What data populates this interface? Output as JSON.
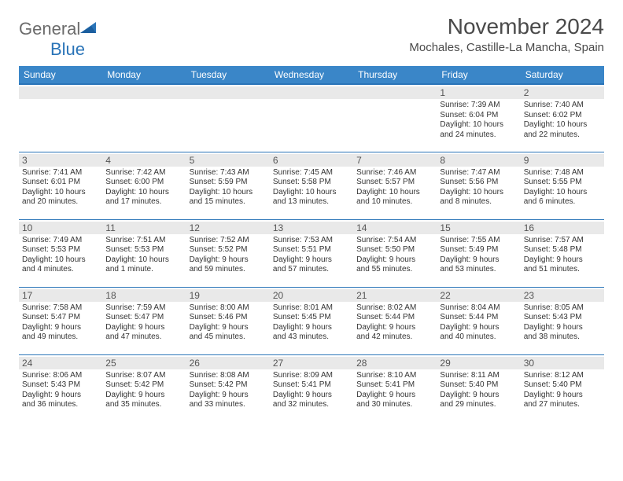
{
  "brand": {
    "general": "General",
    "blue": "Blue"
  },
  "title": "November 2024",
  "location": "Mochales, Castille-La Mancha, Spain",
  "weekdays": [
    "Sunday",
    "Monday",
    "Tuesday",
    "Wednesday",
    "Thursday",
    "Friday",
    "Saturday"
  ],
  "colors": {
    "header_bg": "#3a86c8",
    "header_text": "#ffffff",
    "rule": "#2a74b8",
    "daynum_bg": "#e9e9e9",
    "text": "#333333",
    "brand_gray": "#6b6b6b",
    "brand_blue": "#2a74b8"
  },
  "weeks": [
    [
      {
        "day": ""
      },
      {
        "day": ""
      },
      {
        "day": ""
      },
      {
        "day": ""
      },
      {
        "day": ""
      },
      {
        "day": "1",
        "sunrise": "Sunrise: 7:39 AM",
        "sunset": "Sunset: 6:04 PM",
        "dl1": "Daylight: 10 hours",
        "dl2": "and 24 minutes."
      },
      {
        "day": "2",
        "sunrise": "Sunrise: 7:40 AM",
        "sunset": "Sunset: 6:02 PM",
        "dl1": "Daylight: 10 hours",
        "dl2": "and 22 minutes."
      }
    ],
    [
      {
        "day": "3",
        "sunrise": "Sunrise: 7:41 AM",
        "sunset": "Sunset: 6:01 PM",
        "dl1": "Daylight: 10 hours",
        "dl2": "and 20 minutes."
      },
      {
        "day": "4",
        "sunrise": "Sunrise: 7:42 AM",
        "sunset": "Sunset: 6:00 PM",
        "dl1": "Daylight: 10 hours",
        "dl2": "and 17 minutes."
      },
      {
        "day": "5",
        "sunrise": "Sunrise: 7:43 AM",
        "sunset": "Sunset: 5:59 PM",
        "dl1": "Daylight: 10 hours",
        "dl2": "and 15 minutes."
      },
      {
        "day": "6",
        "sunrise": "Sunrise: 7:45 AM",
        "sunset": "Sunset: 5:58 PM",
        "dl1": "Daylight: 10 hours",
        "dl2": "and 13 minutes."
      },
      {
        "day": "7",
        "sunrise": "Sunrise: 7:46 AM",
        "sunset": "Sunset: 5:57 PM",
        "dl1": "Daylight: 10 hours",
        "dl2": "and 10 minutes."
      },
      {
        "day": "8",
        "sunrise": "Sunrise: 7:47 AM",
        "sunset": "Sunset: 5:56 PM",
        "dl1": "Daylight: 10 hours",
        "dl2": "and 8 minutes."
      },
      {
        "day": "9",
        "sunrise": "Sunrise: 7:48 AM",
        "sunset": "Sunset: 5:55 PM",
        "dl1": "Daylight: 10 hours",
        "dl2": "and 6 minutes."
      }
    ],
    [
      {
        "day": "10",
        "sunrise": "Sunrise: 7:49 AM",
        "sunset": "Sunset: 5:53 PM",
        "dl1": "Daylight: 10 hours",
        "dl2": "and 4 minutes."
      },
      {
        "day": "11",
        "sunrise": "Sunrise: 7:51 AM",
        "sunset": "Sunset: 5:53 PM",
        "dl1": "Daylight: 10 hours",
        "dl2": "and 1 minute."
      },
      {
        "day": "12",
        "sunrise": "Sunrise: 7:52 AM",
        "sunset": "Sunset: 5:52 PM",
        "dl1": "Daylight: 9 hours",
        "dl2": "and 59 minutes."
      },
      {
        "day": "13",
        "sunrise": "Sunrise: 7:53 AM",
        "sunset": "Sunset: 5:51 PM",
        "dl1": "Daylight: 9 hours",
        "dl2": "and 57 minutes."
      },
      {
        "day": "14",
        "sunrise": "Sunrise: 7:54 AM",
        "sunset": "Sunset: 5:50 PM",
        "dl1": "Daylight: 9 hours",
        "dl2": "and 55 minutes."
      },
      {
        "day": "15",
        "sunrise": "Sunrise: 7:55 AM",
        "sunset": "Sunset: 5:49 PM",
        "dl1": "Daylight: 9 hours",
        "dl2": "and 53 minutes."
      },
      {
        "day": "16",
        "sunrise": "Sunrise: 7:57 AM",
        "sunset": "Sunset: 5:48 PM",
        "dl1": "Daylight: 9 hours",
        "dl2": "and 51 minutes."
      }
    ],
    [
      {
        "day": "17",
        "sunrise": "Sunrise: 7:58 AM",
        "sunset": "Sunset: 5:47 PM",
        "dl1": "Daylight: 9 hours",
        "dl2": "and 49 minutes."
      },
      {
        "day": "18",
        "sunrise": "Sunrise: 7:59 AM",
        "sunset": "Sunset: 5:47 PM",
        "dl1": "Daylight: 9 hours",
        "dl2": "and 47 minutes."
      },
      {
        "day": "19",
        "sunrise": "Sunrise: 8:00 AM",
        "sunset": "Sunset: 5:46 PM",
        "dl1": "Daylight: 9 hours",
        "dl2": "and 45 minutes."
      },
      {
        "day": "20",
        "sunrise": "Sunrise: 8:01 AM",
        "sunset": "Sunset: 5:45 PM",
        "dl1": "Daylight: 9 hours",
        "dl2": "and 43 minutes."
      },
      {
        "day": "21",
        "sunrise": "Sunrise: 8:02 AM",
        "sunset": "Sunset: 5:44 PM",
        "dl1": "Daylight: 9 hours",
        "dl2": "and 42 minutes."
      },
      {
        "day": "22",
        "sunrise": "Sunrise: 8:04 AM",
        "sunset": "Sunset: 5:44 PM",
        "dl1": "Daylight: 9 hours",
        "dl2": "and 40 minutes."
      },
      {
        "day": "23",
        "sunrise": "Sunrise: 8:05 AM",
        "sunset": "Sunset: 5:43 PM",
        "dl1": "Daylight: 9 hours",
        "dl2": "and 38 minutes."
      }
    ],
    [
      {
        "day": "24",
        "sunrise": "Sunrise: 8:06 AM",
        "sunset": "Sunset: 5:43 PM",
        "dl1": "Daylight: 9 hours",
        "dl2": "and 36 minutes."
      },
      {
        "day": "25",
        "sunrise": "Sunrise: 8:07 AM",
        "sunset": "Sunset: 5:42 PM",
        "dl1": "Daylight: 9 hours",
        "dl2": "and 35 minutes."
      },
      {
        "day": "26",
        "sunrise": "Sunrise: 8:08 AM",
        "sunset": "Sunset: 5:42 PM",
        "dl1": "Daylight: 9 hours",
        "dl2": "and 33 minutes."
      },
      {
        "day": "27",
        "sunrise": "Sunrise: 8:09 AM",
        "sunset": "Sunset: 5:41 PM",
        "dl1": "Daylight: 9 hours",
        "dl2": "and 32 minutes."
      },
      {
        "day": "28",
        "sunrise": "Sunrise: 8:10 AM",
        "sunset": "Sunset: 5:41 PM",
        "dl1": "Daylight: 9 hours",
        "dl2": "and 30 minutes."
      },
      {
        "day": "29",
        "sunrise": "Sunrise: 8:11 AM",
        "sunset": "Sunset: 5:40 PM",
        "dl1": "Daylight: 9 hours",
        "dl2": "and 29 minutes."
      },
      {
        "day": "30",
        "sunrise": "Sunrise: 8:12 AM",
        "sunset": "Sunset: 5:40 PM",
        "dl1": "Daylight: 9 hours",
        "dl2": "and 27 minutes."
      }
    ]
  ]
}
